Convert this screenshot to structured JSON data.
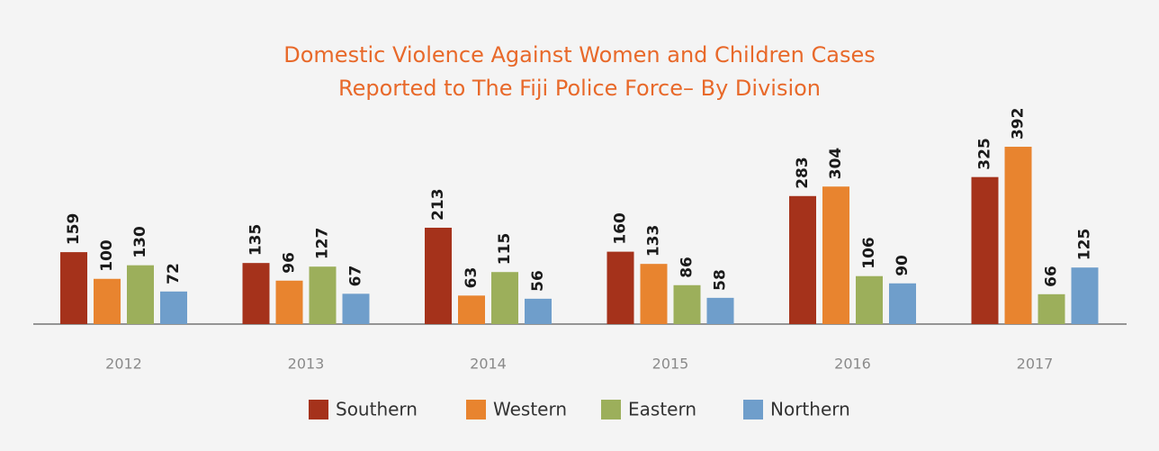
{
  "chart_data": {
    "type": "bar",
    "title": [
      "Domestic Violence Against Women and Children Cases",
      "Reported to The Fiji Police Force– By Division"
    ],
    "categories": [
      "2012",
      "2013",
      "2014",
      "2015",
      "2016",
      "2017"
    ],
    "series": [
      {
        "name": "Southern",
        "color": "#a5321b",
        "values": [
          159,
          135,
          213,
          160,
          283,
          325
        ]
      },
      {
        "name": "Western",
        "color": "#e8842f",
        "values": [
          100,
          96,
          63,
          133,
          304,
          392
        ]
      },
      {
        "name": "Eastern",
        "color": "#9caf5b",
        "values": [
          130,
          127,
          115,
          86,
          106,
          66
        ]
      },
      {
        "name": "Northern",
        "color": "#6f9ecb",
        "values": [
          72,
          67,
          56,
          58,
          90,
          125
        ]
      }
    ],
    "ylim": [
      0,
      400
    ],
    "legend": "bottom"
  }
}
